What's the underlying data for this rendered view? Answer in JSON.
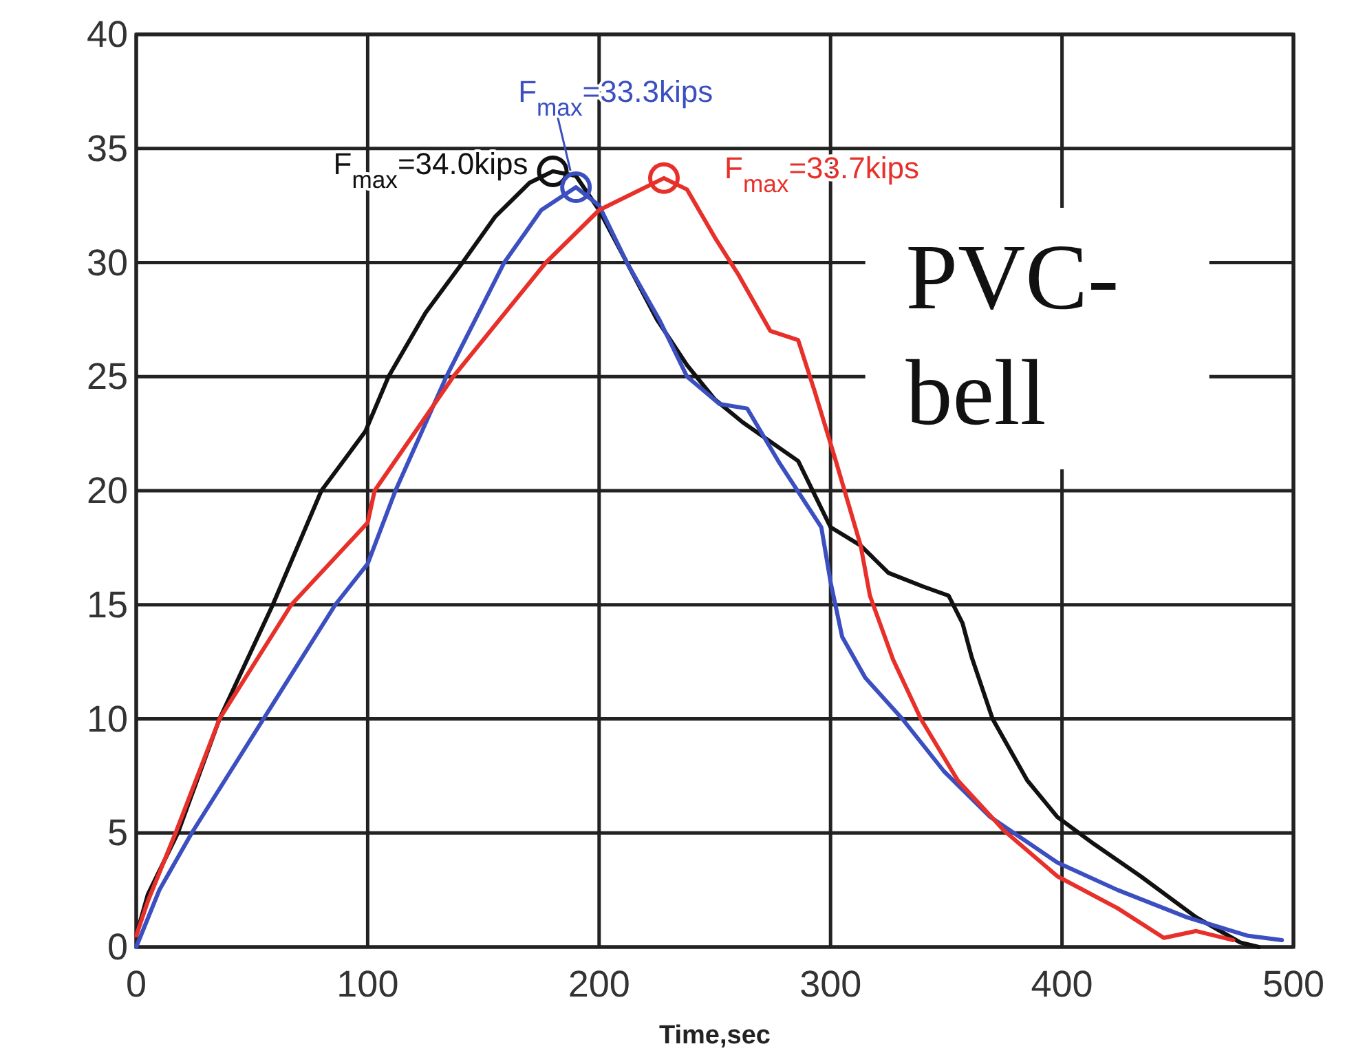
{
  "chart_data": {
    "type": "line",
    "xlabel": "Time,sec",
    "xlim": [
      0,
      500
    ],
    "xticks": [
      0,
      100,
      200,
      300,
      400,
      500
    ],
    "ylim": [
      0,
      40
    ],
    "yticks": [
      0,
      5,
      10,
      15,
      20,
      25,
      30,
      35,
      40
    ],
    "grid": true,
    "line_style": "solid",
    "series": [
      {
        "color": "#111111",
        "x": [
          0,
          5,
          18,
          36,
          59,
          80,
          99,
          109,
          125,
          141,
          155,
          170,
          180,
          190,
          200,
          212,
          225,
          238,
          250,
          262,
          286,
          300,
          313,
          325,
          340,
          351,
          357,
          361,
          370,
          385,
          398,
          414,
          434,
          458,
          477,
          485
        ],
        "values": [
          0.5,
          2.3,
          5,
          10,
          15,
          20,
          22.6,
          25,
          27.8,
          30,
          32,
          33.5,
          34,
          33.8,
          32.3,
          30,
          27.5,
          25.5,
          24,
          23,
          21.3,
          18.4,
          17.6,
          16.4,
          15.8,
          15.4,
          14.2,
          12.7,
          10,
          7.3,
          5.7,
          4.5,
          3.1,
          1.3,
          0.2,
          0
        ]
      },
      {
        "color": "#3b4fc0",
        "x": [
          0,
          10,
          24,
          55,
          86,
          100,
          112,
          134,
          159,
          175,
          190,
          200,
          212,
          226,
          238,
          252,
          264,
          278,
          296,
          300,
          305,
          315,
          331,
          349,
          369,
          398,
          424,
          454,
          480,
          495
        ],
        "values": [
          0,
          2.5,
          5,
          10,
          15,
          16.8,
          20,
          25,
          30,
          32.3,
          33.3,
          32.5,
          30,
          27.5,
          25,
          23.8,
          23.6,
          21.2,
          18.4,
          16,
          13.6,
          11.8,
          10,
          7.7,
          5.7,
          3.7,
          2.5,
          1.3,
          0.5,
          0.3
        ]
      },
      {
        "color": "#e8302a",
        "x": [
          0,
          5,
          17,
          36,
          67,
          100,
          103,
          137,
          177,
          200,
          228,
          238,
          250,
          260,
          274,
          286,
          293,
          302,
          313,
          317,
          327,
          339,
          355,
          375,
          398,
          424,
          444,
          458,
          474
        ],
        "values": [
          0.5,
          2,
          5,
          10,
          15,
          18.6,
          20,
          25,
          30,
          32.3,
          33.7,
          33.2,
          31.1,
          29.5,
          27,
          26.6,
          24.4,
          21.4,
          17.6,
          15.4,
          12.6,
          10,
          7.3,
          5.1,
          3.1,
          1.7,
          0.4,
          0.7,
          0.3
        ]
      },
      {
        "type": "scatter",
        "marker": "circle",
        "color": "#111111",
        "x": [
          180
        ],
        "values": [
          34.0
        ]
      },
      {
        "type": "scatter",
        "marker": "circle",
        "color": "#3b4fc0",
        "x": [
          190
        ],
        "values": [
          33.3
        ]
      },
      {
        "type": "scatter",
        "marker": "circle",
        "color": "#e8302a",
        "x": [
          228
        ],
        "values": [
          33.7
        ]
      }
    ],
    "annotations": [
      {
        "text": "F$_{max}$=34.0kips",
        "x": 180,
        "y": 34.0
      },
      {
        "text": "F$_{max}$=33.3kips",
        "x": 190,
        "y": 33.3
      },
      {
        "text": "F$_{max}$=33.7kips",
        "x": 228,
        "y": 33.7
      },
      "PVC-\nbell"
    ]
  }
}
